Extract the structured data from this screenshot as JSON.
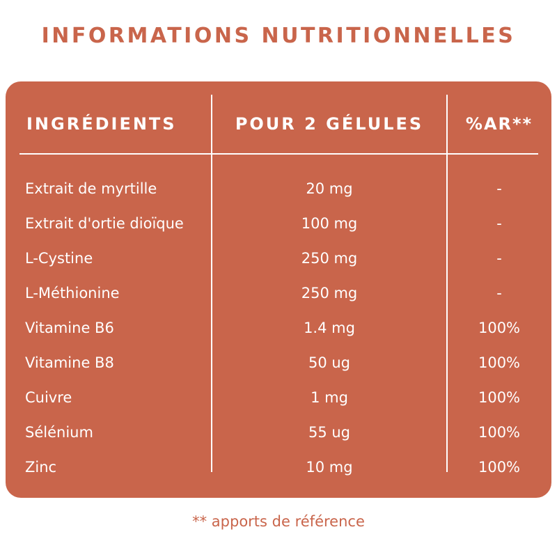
{
  "title": "INFORMATIONS NUTRITIONNELLES",
  "colors": {
    "accent": "#c9654b",
    "text_on_accent": "#ffffff"
  },
  "table": {
    "headers": {
      "ingredient": "INGRÉDIENTS",
      "amount": "POUR 2 GÉLULES",
      "ar": "%AR**"
    },
    "rows": [
      {
        "ingredient": "Extrait de myrtille",
        "amount": "20 mg",
        "ar": "-"
      },
      {
        "ingredient": "Extrait d'ortie dioïque",
        "amount": "100 mg",
        "ar": "-"
      },
      {
        "ingredient": "L-Cystine",
        "amount": "250 mg",
        "ar": "-"
      },
      {
        "ingredient": "L-Méthionine",
        "amount": "250 mg",
        "ar": "-"
      },
      {
        "ingredient": "Vitamine B6",
        "amount": "1.4 mg",
        "ar": "100%"
      },
      {
        "ingredient": "Vitamine B8",
        "amount": "50 ug",
        "ar": "100%"
      },
      {
        "ingredient": "Cuivre",
        "amount": "1 mg",
        "ar": "100%"
      },
      {
        "ingredient": "Sélénium",
        "amount": "55 ug",
        "ar": "100%"
      },
      {
        "ingredient": "Zinc",
        "amount": "10 mg",
        "ar": "100%"
      }
    ]
  },
  "footnote": "** apports de référence"
}
